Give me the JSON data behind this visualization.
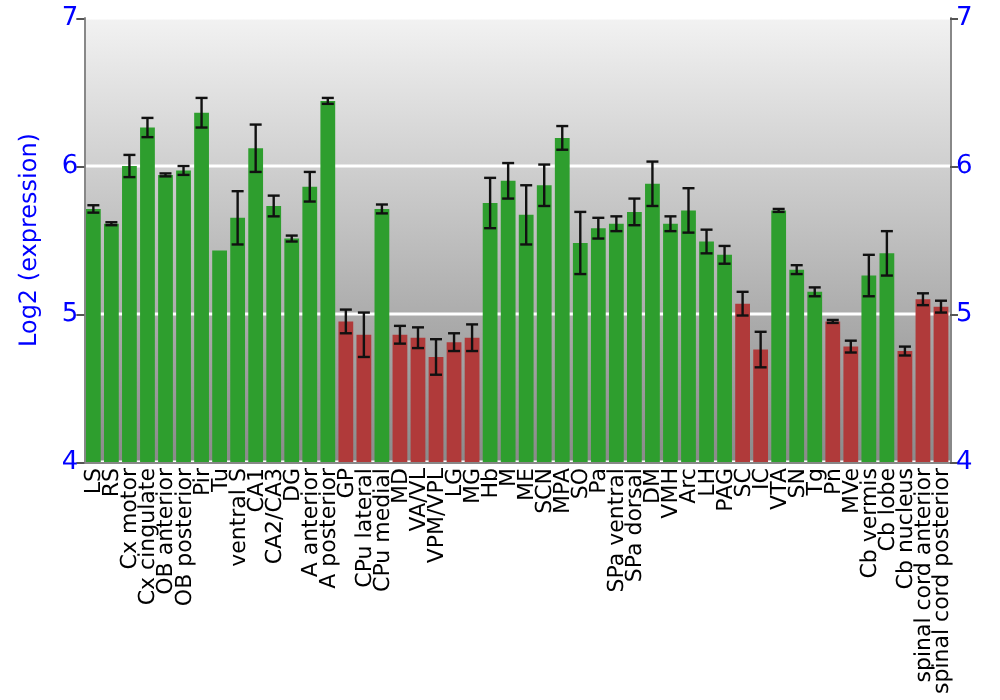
{
  "chart_data": {
    "type": "bar",
    "ylabel": "Log2 (expression)",
    "categories": [
      "LS",
      "RS",
      "Cx motor",
      "Cx cingulate",
      "OB anterior",
      "OB posterior",
      "Pir",
      "Tu",
      "ventral S",
      "CA1",
      "CA2/CA3",
      "DG",
      "A anterior",
      "A posterior",
      "GP",
      "CPu lateral",
      "CPu medial",
      "MD",
      "VA/VL",
      "VPM/VPL",
      "LG",
      "MG",
      "Hb",
      "M",
      "ME",
      "SCN",
      "MPA",
      "SO",
      "Pa",
      "SPa ventral",
      "SPa dorsal",
      "DM",
      "VMH",
      "Arc",
      "LH",
      "PAG",
      "SC",
      "IC",
      "VTA",
      "SN",
      "Tg",
      "Pn",
      "MVe",
      "Cb vermis",
      "Cb lobe",
      "Cb nucleus",
      "spinal cord anterior",
      "spinal cord posterior"
    ],
    "values": [
      5.71,
      5.61,
      6.0,
      6.26,
      5.94,
      5.97,
      6.36,
      5.43,
      5.65,
      6.12,
      5.73,
      5.51,
      5.86,
      6.44,
      4.95,
      4.86,
      5.71,
      4.86,
      4.84,
      4.71,
      4.81,
      4.84,
      5.75,
      5.9,
      5.67,
      5.87,
      6.19,
      5.48,
      5.58,
      5.61,
      5.69,
      5.88,
      5.61,
      5.7,
      5.49,
      5.4,
      5.07,
      4.76,
      5.7,
      5.3,
      5.15,
      4.95,
      4.78,
      5.26,
      5.41,
      4.75,
      5.1,
      5.05
    ],
    "errors": [
      0.025,
      0.01,
      0.075,
      0.065,
      0.01,
      0.03,
      0.1,
      null,
      0.18,
      0.16,
      0.07,
      0.02,
      0.1,
      0.02,
      0.08,
      0.15,
      0.03,
      0.06,
      0.07,
      0.12,
      0.06,
      0.09,
      0.17,
      0.12,
      0.2,
      0.14,
      0.08,
      0.21,
      0.07,
      0.05,
      0.09,
      0.15,
      0.05,
      0.15,
      0.08,
      0.06,
      0.08,
      0.12,
      0.01,
      0.03,
      0.03,
      0.01,
      0.04,
      0.14,
      0.15,
      0.03,
      0.04,
      0.04
    ],
    "colors": [
      "#2e9e2e",
      "#2e9e2e",
      "#2e9e2e",
      "#2e9e2e",
      "#2e9e2e",
      "#2e9e2e",
      "#2e9e2e",
      "#2e9e2e",
      "#2e9e2e",
      "#2e9e2e",
      "#2e9e2e",
      "#2e9e2e",
      "#2e9e2e",
      "#2e9e2e",
      "#b03a3a",
      "#b03a3a",
      "#2e9e2e",
      "#b03a3a",
      "#b03a3a",
      "#b03a3a",
      "#b03a3a",
      "#b03a3a",
      "#2e9e2e",
      "#2e9e2e",
      "#2e9e2e",
      "#2e9e2e",
      "#2e9e2e",
      "#2e9e2e",
      "#2e9e2e",
      "#2e9e2e",
      "#2e9e2e",
      "#2e9e2e",
      "#2e9e2e",
      "#2e9e2e",
      "#2e9e2e",
      "#2e9e2e",
      "#b03a3a",
      "#b03a3a",
      "#2e9e2e",
      "#2e9e2e",
      "#2e9e2e",
      "#b03a3a",
      "#b03a3a",
      "#2e9e2e",
      "#2e9e2e",
      "#b03a3a",
      "#b03a3a",
      "#b03a3a"
    ],
    "ylim": [
      4,
      7
    ],
    "yticks": [
      4,
      5,
      6,
      7
    ],
    "y2lim": [
      4,
      7
    ],
    "y2ticks": [
      4,
      5,
      6,
      7
    ],
    "grid": "y"
  }
}
